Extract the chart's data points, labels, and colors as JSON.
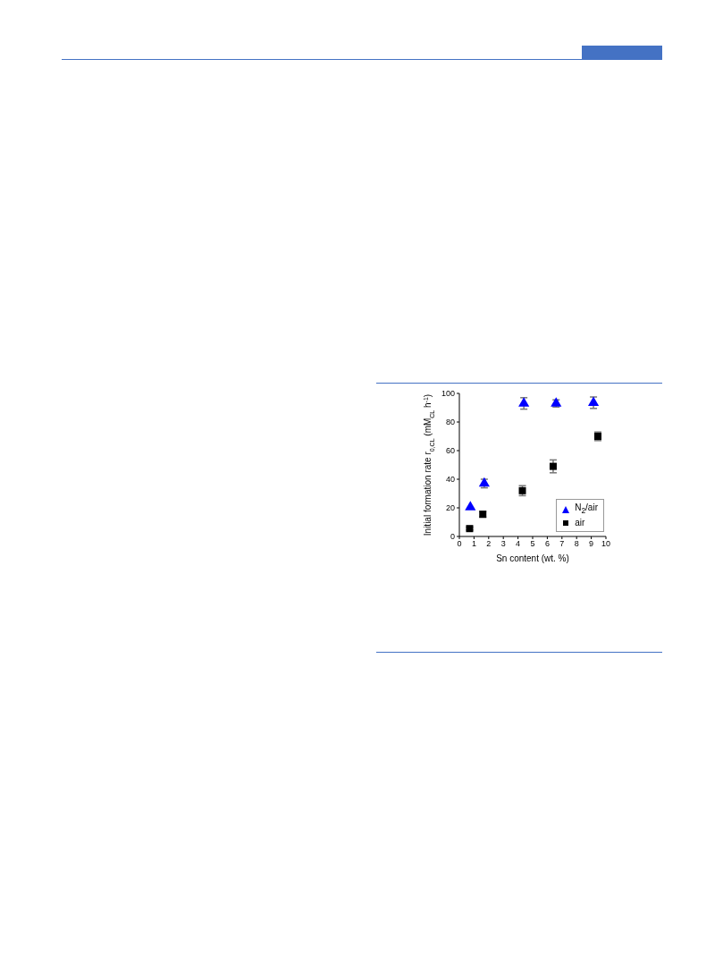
{
  "chart_data": {
    "type": "scatter",
    "xlabel": "Sn content (wt. %)",
    "ylabel": "Initial formation rate r$_{0,CL}$ (mM$_{CL}$ h$^{-1}$)",
    "xlim": [
      0,
      10
    ],
    "xticks": [
      0,
      1,
      2,
      3,
      4,
      5,
      6,
      7,
      8,
      9,
      10
    ],
    "ylim": [
      0,
      100
    ],
    "yticks": [
      0,
      20,
      40,
      60,
      80,
      100
    ],
    "grid": false,
    "legend": "bottom right",
    "series": [
      {
        "name": "N$_{2}$/air",
        "color": "#0000ff",
        "marker": "triangle",
        "x": [
          0.75,
          1.7,
          4.4,
          6.6,
          9.15
        ],
        "values": [
          20.5,
          37,
          93,
          93,
          93.5
        ],
        "errors": [
          null,
          3,
          4,
          2.5,
          4
        ]
      },
      {
        "name": "air",
        "color": "#000000",
        "marker": "square",
        "x": [
          0.7,
          1.6,
          4.3,
          6.4,
          9.45
        ],
        "values": [
          5.5,
          15.5,
          32,
          49,
          70
        ],
        "errors": [
          1,
          2,
          3.5,
          4.5,
          3
        ]
      }
    ]
  }
}
